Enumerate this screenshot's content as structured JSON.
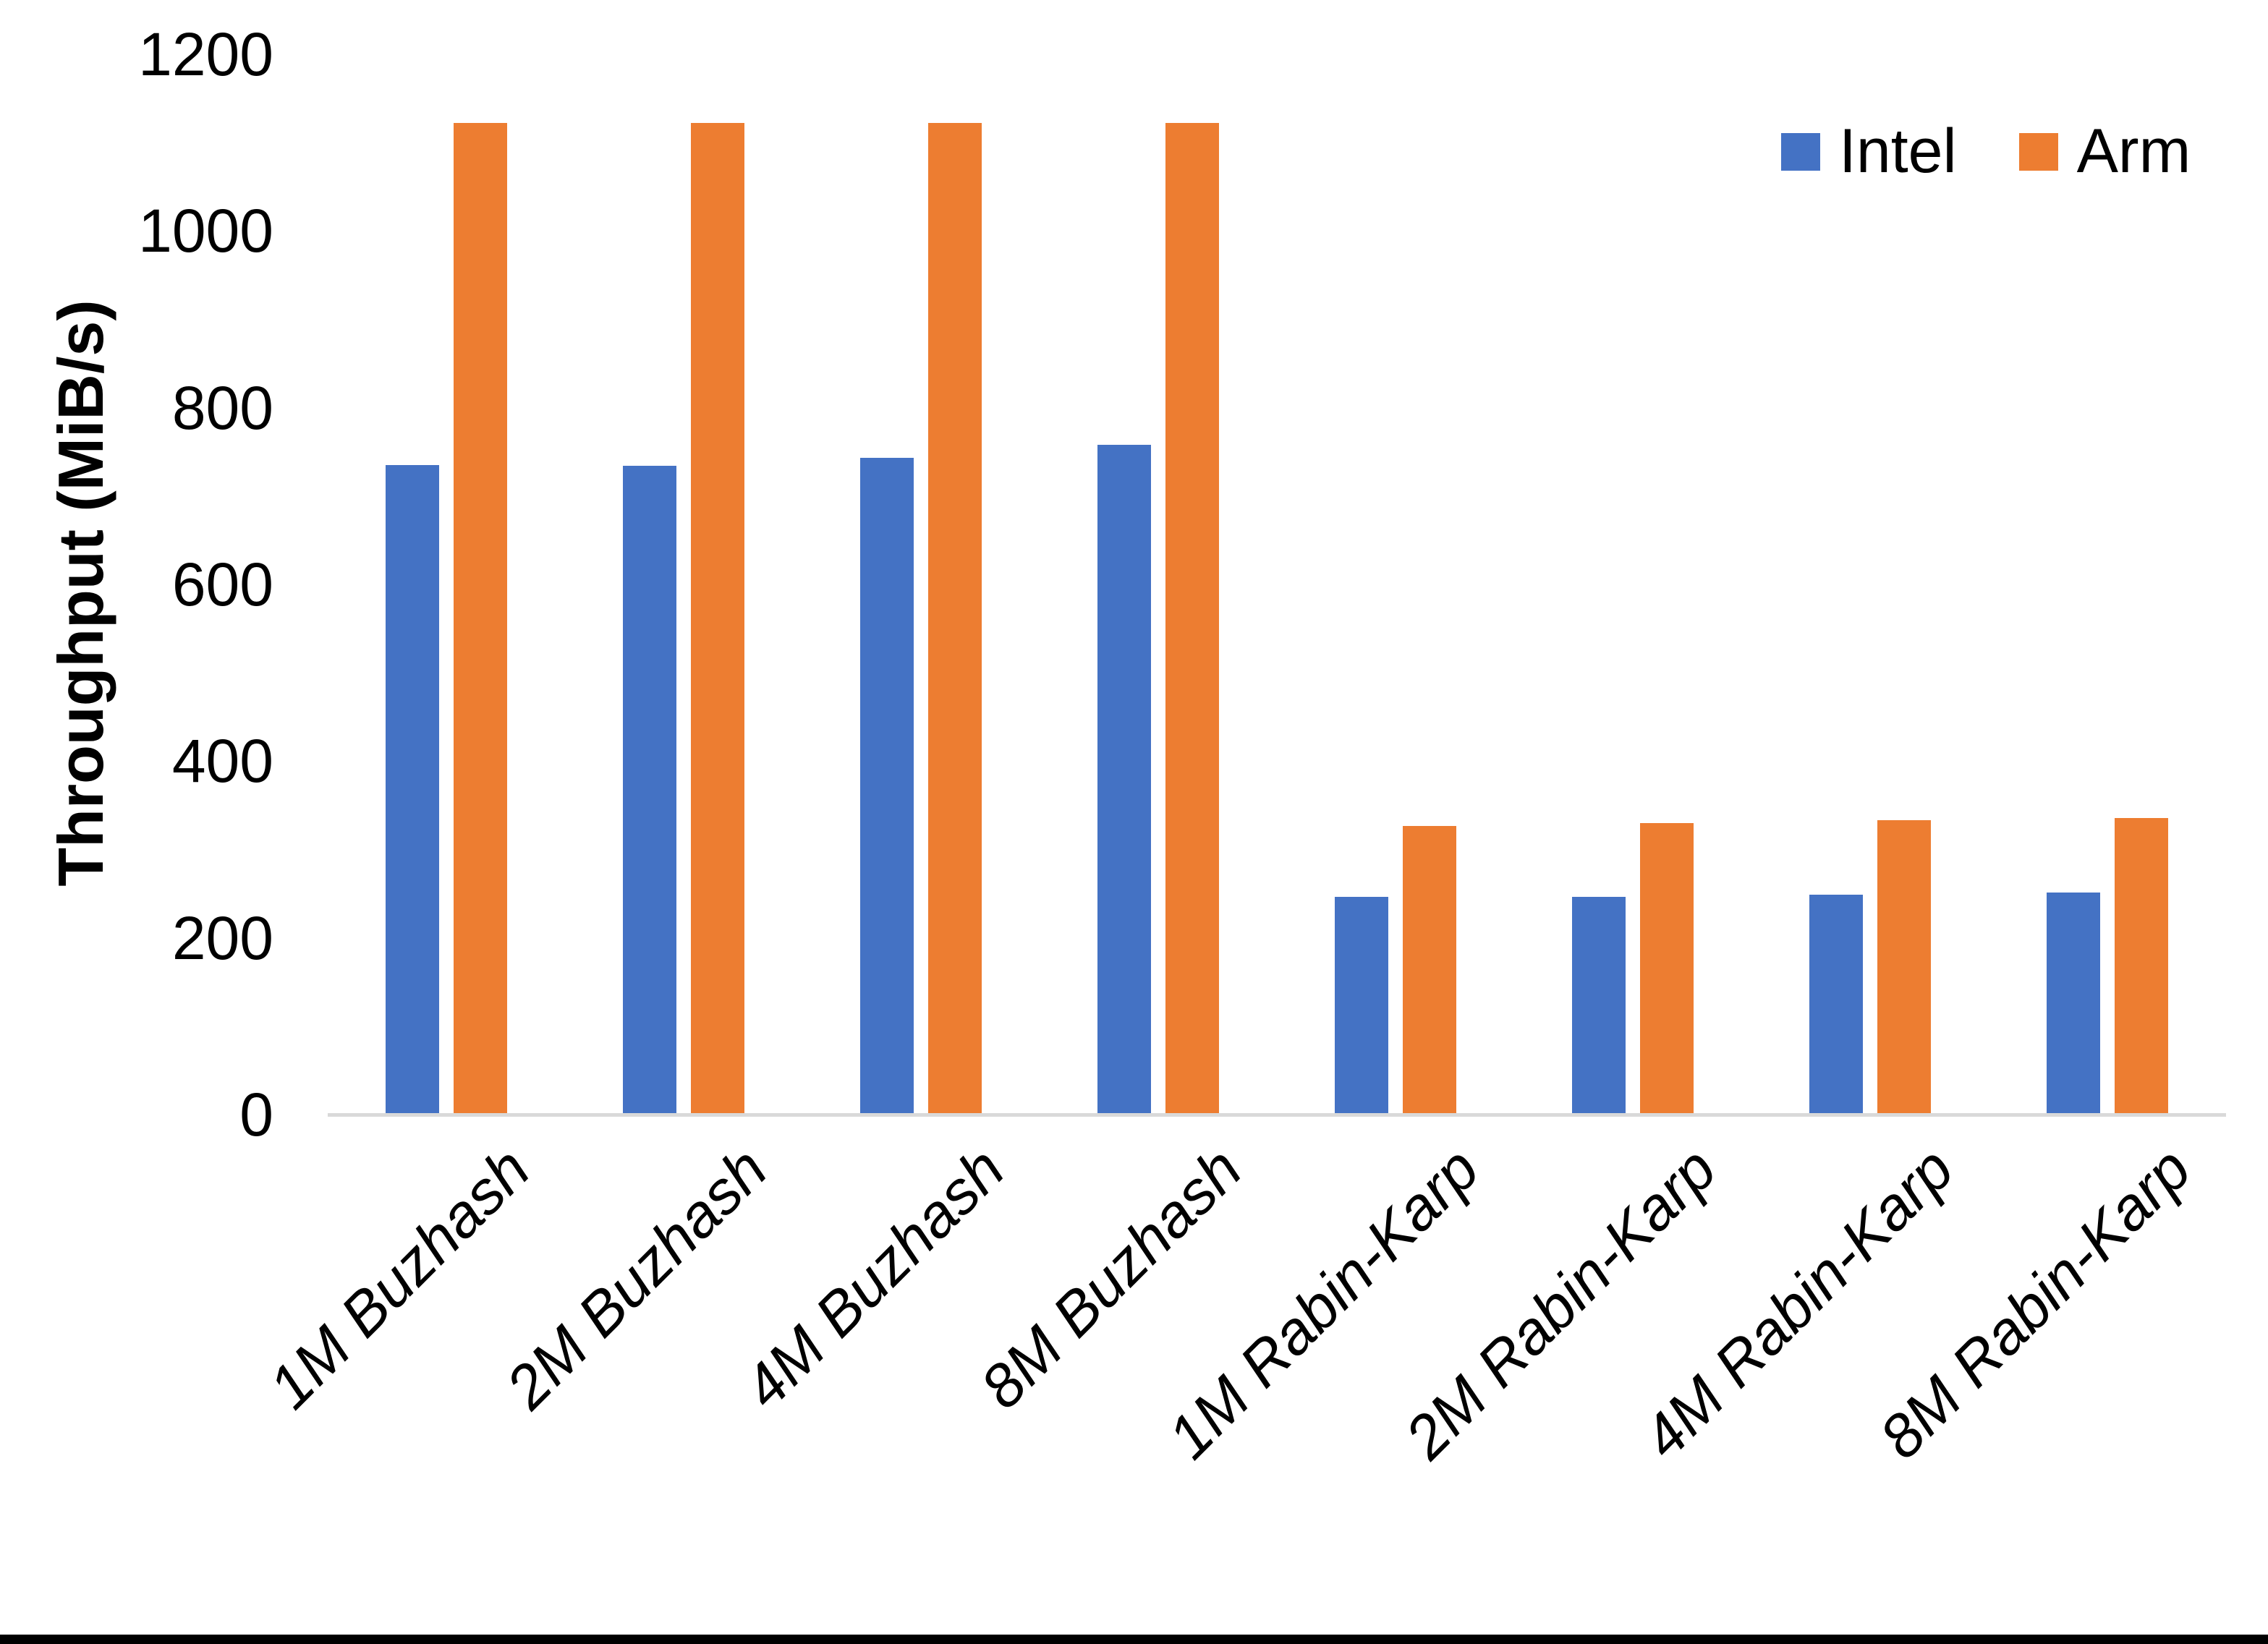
{
  "chart_data": {
    "type": "bar",
    "title": "",
    "xlabel": "",
    "ylabel": "Throughput (MiB/s)",
    "categories": [
      "1M Buzhash",
      "2M Buzhash",
      "4M Buzhash",
      "8M Buzhash",
      "1M Rabin-Karp",
      "2M Rabin-Karp",
      "4M Rabin-Karp",
      "8M Rabin-Karp"
    ],
    "series": [
      {
        "name": "Intel",
        "color": "#4472C4",
        "values": [
          735,
          734,
          743,
          758,
          246,
          246,
          249,
          251
        ]
      },
      {
        "name": "Arm",
        "color": "#ED7D31",
        "values": [
          1122,
          1122,
          1122,
          1122,
          327,
          330,
          333,
          336
        ]
      }
    ],
    "ylim": [
      0,
      1200
    ],
    "yticks": [
      0,
      200,
      400,
      600,
      800,
      1000,
      1200
    ],
    "grid": false,
    "legend_position": "top-right"
  },
  "colors": {
    "axis_line": "#D9D9D9",
    "text": "#000000",
    "background": "#FFFFFF",
    "bottom_border": "#000000"
  }
}
